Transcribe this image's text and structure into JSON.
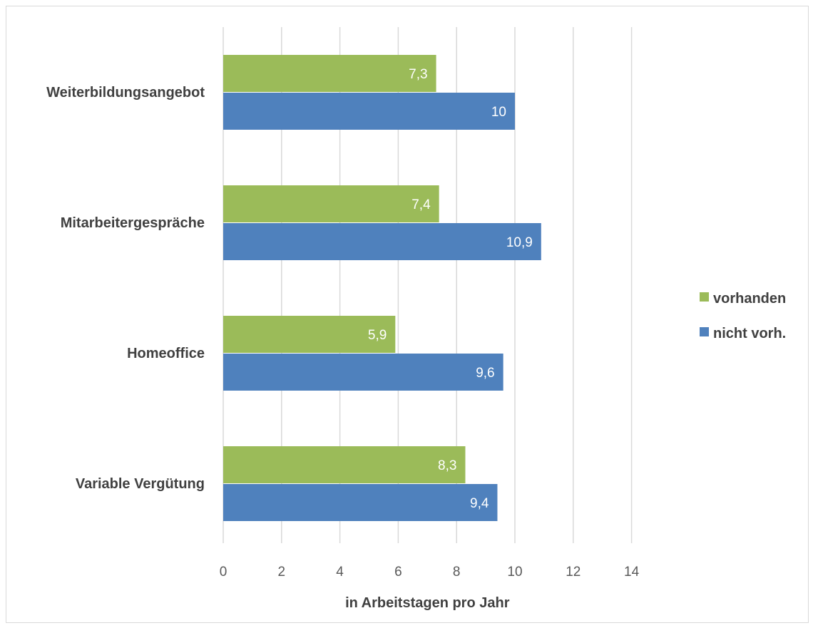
{
  "chart_data": {
    "type": "bar",
    "orientation": "horizontal",
    "categories": [
      "Weiterbildungsangebot",
      "Mitarbeitergespräche",
      "Homeoffice",
      "Variable Vergütung"
    ],
    "series": [
      {
        "name": "vorhanden",
        "color": "#9bbb59",
        "values": [
          7.3,
          7.4,
          5.9,
          8.3
        ],
        "labels": [
          "7,3",
          "7,4",
          "5,9",
          "8,3"
        ]
      },
      {
        "name": "nicht vorh.",
        "color": "#4f81bd",
        "values": [
          10,
          10.9,
          9.6,
          9.4
        ],
        "labels": [
          "10",
          "10,9",
          "9,6",
          "9,4"
        ]
      }
    ],
    "xlabel": "in Arbeitstagen pro Jahr",
    "xlim": [
      0,
      14
    ],
    "xticks": [
      0,
      2,
      4,
      6,
      8,
      10,
      12,
      14
    ],
    "xtick_labels": [
      "0",
      "2",
      "4",
      "6",
      "8",
      "10",
      "12",
      "14"
    ],
    "grid": "vertical",
    "legend_position": "right"
  }
}
